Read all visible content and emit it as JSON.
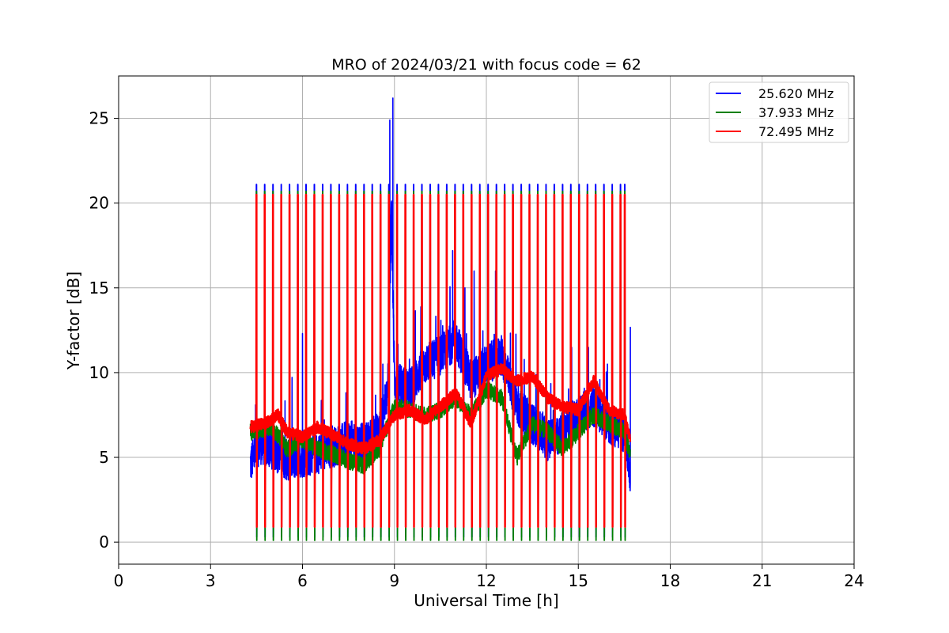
{
  "chart_data": {
    "type": "line",
    "title": "MRO of 2024/03/21 with focus code = 62",
    "xlabel": "Universal Time [h]",
    "ylabel": "Y-factor [dB]",
    "xlim": [
      0,
      24
    ],
    "ylim": [
      -1.3,
      27.5
    ],
    "xticks": [
      0,
      3,
      6,
      9,
      12,
      15,
      18,
      21,
      24
    ],
    "yticks": [
      0,
      5,
      10,
      15,
      20,
      25
    ],
    "grid": true,
    "legend_position": "top-right",
    "series": [
      {
        "name": "25.620 MHz",
        "color": "#0000ff",
        "cal_high": 21.1,
        "cal_low": 0.3,
        "baseline": [
          [
            4.3,
            4.6
          ],
          [
            4.6,
            5.8
          ],
          [
            5.0,
            5.5
          ],
          [
            5.5,
            4.8
          ],
          [
            6.0,
            5.0
          ],
          [
            6.5,
            5.2
          ],
          [
            7.0,
            5.6
          ],
          [
            7.5,
            6.0
          ],
          [
            8.0,
            5.8
          ],
          [
            8.5,
            6.5
          ],
          [
            8.8,
            9.0
          ],
          [
            8.9,
            20.0
          ],
          [
            9.0,
            9.5
          ],
          [
            9.5,
            9.0
          ],
          [
            10.0,
            10.5
          ],
          [
            10.5,
            11.0
          ],
          [
            11.0,
            12.0
          ],
          [
            11.5,
            9.5
          ],
          [
            12.0,
            10.5
          ],
          [
            12.5,
            11.0
          ],
          [
            13.0,
            8.0
          ],
          [
            13.5,
            7.0
          ],
          [
            14.0,
            6.0
          ],
          [
            14.5,
            6.5
          ],
          [
            15.0,
            7.5
          ],
          [
            15.5,
            8.0
          ],
          [
            16.0,
            7.0
          ],
          [
            16.5,
            6.5
          ],
          [
            16.7,
            4.0
          ]
        ],
        "peaks": [
          [
            8.85,
            24.9
          ],
          [
            8.95,
            26.2
          ],
          [
            10.9,
            17.2
          ],
          [
            11.3,
            15.0
          ],
          [
            11.6,
            16.0
          ],
          [
            12.3,
            16.0
          ],
          [
            6.0,
            12.3
          ],
          [
            16.7,
            12.7
          ]
        ]
      },
      {
        "name": "37.933 MHz",
        "color": "#008000",
        "cal_high": 20.7,
        "cal_low": 0.1,
        "baseline": [
          [
            4.3,
            6.5
          ],
          [
            5.0,
            6.8
          ],
          [
            5.5,
            5.5
          ],
          [
            6.0,
            6.0
          ],
          [
            6.5,
            5.5
          ],
          [
            7.0,
            5.2
          ],
          [
            7.5,
            4.8
          ],
          [
            8.0,
            4.5
          ],
          [
            8.5,
            5.5
          ],
          [
            9.0,
            8.0
          ],
          [
            9.5,
            7.8
          ],
          [
            10.0,
            7.5
          ],
          [
            10.5,
            7.8
          ],
          [
            11.0,
            8.5
          ],
          [
            11.5,
            7.5
          ],
          [
            12.0,
            9.0
          ],
          [
            12.5,
            8.5
          ],
          [
            13.0,
            5.0
          ],
          [
            13.5,
            7.0
          ],
          [
            14.0,
            6.5
          ],
          [
            14.5,
            5.5
          ],
          [
            15.0,
            6.5
          ],
          [
            15.5,
            7.5
          ],
          [
            16.0,
            7.0
          ],
          [
            16.5,
            6.5
          ],
          [
            16.7,
            5.0
          ]
        ],
        "peaks": []
      },
      {
        "name": "72.495 MHz",
        "color": "#ff0000",
        "cal_high": 20.5,
        "cal_low": 0.9,
        "baseline": [
          [
            4.3,
            6.8
          ],
          [
            4.8,
            7.0
          ],
          [
            5.2,
            7.5
          ],
          [
            5.5,
            6.5
          ],
          [
            6.0,
            6.2
          ],
          [
            6.5,
            6.8
          ],
          [
            7.0,
            6.3
          ],
          [
            7.5,
            5.8
          ],
          [
            8.0,
            5.5
          ],
          [
            8.5,
            6.0
          ],
          [
            9.0,
            7.5
          ],
          [
            9.5,
            7.8
          ],
          [
            10.0,
            7.2
          ],
          [
            10.5,
            8.0
          ],
          [
            11.0,
            8.8
          ],
          [
            11.5,
            7.0
          ],
          [
            12.0,
            9.8
          ],
          [
            12.5,
            10.2
          ],
          [
            13.0,
            9.5
          ],
          [
            13.5,
            9.8
          ],
          [
            14.0,
            8.5
          ],
          [
            14.5,
            8.0
          ],
          [
            15.0,
            7.8
          ],
          [
            15.5,
            9.5
          ],
          [
            16.0,
            7.8
          ],
          [
            16.5,
            7.5
          ],
          [
            16.7,
            6.0
          ]
        ],
        "peaks": []
      }
    ],
    "calibration_times": [
      4.5,
      4.77,
      5.04,
      5.31,
      5.58,
      5.85,
      6.12,
      6.39,
      6.66,
      6.93,
      7.2,
      7.47,
      7.74,
      8.01,
      8.28,
      8.55,
      8.82,
      9.09,
      9.36,
      9.63,
      9.9,
      10.17,
      10.44,
      10.71,
      10.98,
      11.25,
      11.52,
      11.79,
      12.06,
      12.33,
      12.6,
      12.87,
      13.14,
      13.41,
      13.68,
      13.95,
      14.22,
      14.49,
      14.76,
      15.03,
      15.3,
      15.57,
      15.84,
      16.11,
      16.38,
      16.52
    ]
  }
}
